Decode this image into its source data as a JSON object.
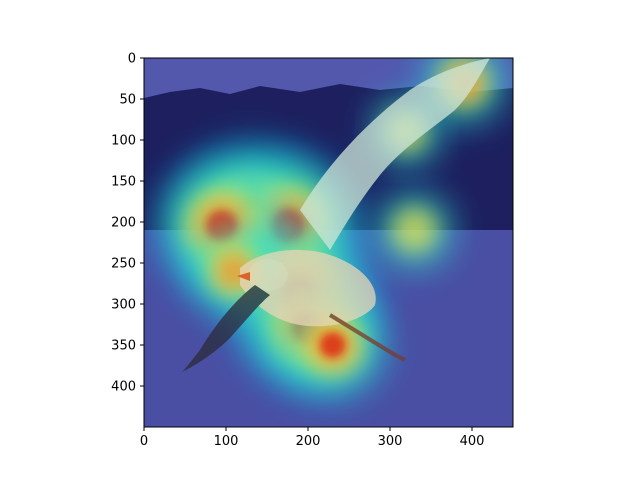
{
  "chart_data": {
    "type": "heatmap",
    "title": "",
    "xlabel": "",
    "ylabel": "",
    "image_description_hidden": true,
    "xlim": [
      0,
      450
    ],
    "ylim": [
      450,
      0
    ],
    "x_ticks": [
      0,
      100,
      200,
      300,
      400
    ],
    "y_ticks": [
      0,
      50,
      100,
      150,
      200,
      250,
      300,
      350,
      400
    ],
    "x_tick_labels": [
      "0",
      "100",
      "200",
      "300",
      "400"
    ],
    "y_tick_labels": [
      "0",
      "50",
      "100",
      "150",
      "200",
      "250",
      "300",
      "350",
      "400"
    ],
    "colormap": "jet",
    "grid": false,
    "hotspots": [
      {
        "x": 130,
        "y": 195,
        "intensity": 1.0
      },
      {
        "x": 175,
        "y": 205,
        "intensity": 0.95
      },
      {
        "x": 95,
        "y": 205,
        "intensity": 0.85
      },
      {
        "x": 190,
        "y": 290,
        "intensity": 0.95
      },
      {
        "x": 200,
        "y": 330,
        "intensity": 0.8
      },
      {
        "x": 230,
        "y": 350,
        "intensity": 0.7
      },
      {
        "x": 330,
        "y": 210,
        "intensity": 0.5
      },
      {
        "x": 320,
        "y": 90,
        "intensity": 0.45
      },
      {
        "x": 390,
        "y": 30,
        "intensity": 0.55
      },
      {
        "x": 110,
        "y": 260,
        "intensity": 0.6
      }
    ]
  },
  "colors": {
    "background_base": "#3d3f96",
    "water": "#4a4fa3",
    "treeline": "#1e1f5e",
    "sky": "#5358ad",
    "bird_body": "#e9d6b8",
    "bird_wing_dark": "#2c2a3a",
    "beak": "#e2461a"
  }
}
